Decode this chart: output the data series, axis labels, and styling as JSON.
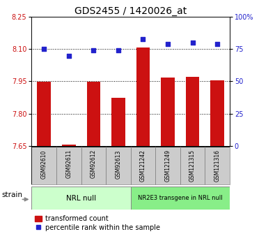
{
  "title": "GDS2455 / 1420026_at",
  "samples": [
    "GSM92610",
    "GSM92611",
    "GSM92612",
    "GSM92613",
    "GSM121242",
    "GSM121249",
    "GSM121315",
    "GSM121316"
  ],
  "bar_values": [
    7.948,
    7.657,
    7.948,
    7.875,
    8.107,
    7.968,
    7.97,
    7.955
  ],
  "dot_values": [
    75,
    70,
    74,
    74,
    83,
    79,
    80,
    79
  ],
  "group1_label": "NRL null",
  "group2_label": "NR2E3 transgene in NRL null",
  "ylim_left": [
    7.65,
    8.25
  ],
  "ylim_right": [
    0,
    100
  ],
  "yticks_left": [
    7.65,
    7.8,
    7.95,
    8.1,
    8.25
  ],
  "yticks_right": [
    0,
    25,
    50,
    75,
    100
  ],
  "bar_color": "#cc1111",
  "dot_color": "#2222cc",
  "grid_lines": [
    7.8,
    7.95,
    8.1
  ],
  "bar_width": 0.55,
  "legend_bar_label": "transformed count",
  "legend_dot_label": "percentile rank within the sample",
  "strain_label": "strain",
  "group1_color": "#ccffcc",
  "group2_color": "#88ee88",
  "tick_area_color": "#cccccc",
  "title_fontsize": 10,
  "tick_fontsize": 7,
  "label_fontsize": 7.5,
  "sample_fontsize": 5.5
}
